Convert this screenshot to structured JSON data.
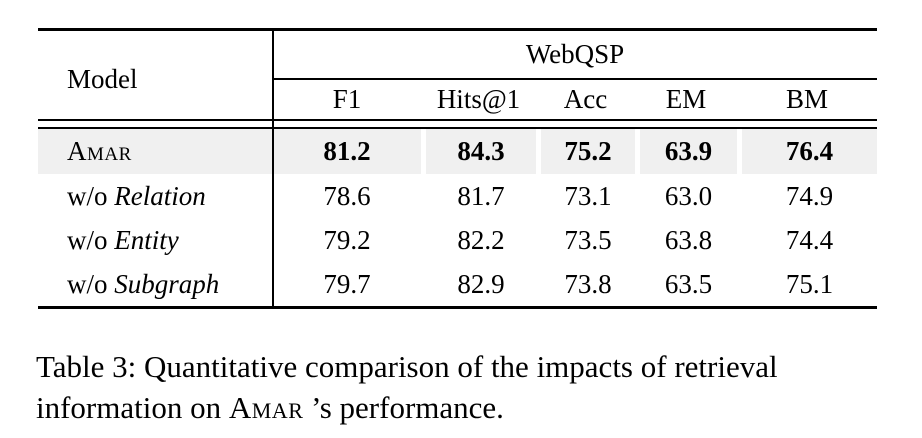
{
  "table": {
    "header": {
      "model_label": "Model",
      "group_label": "WebQSP",
      "columns": [
        "F1",
        "Hits@1",
        "Acc",
        "EM",
        "BM"
      ]
    },
    "rows": [
      {
        "label_prefix": "",
        "label_main": "Amar",
        "label_style": "small-caps",
        "highlighted": true,
        "bold_values": true,
        "values": [
          "81.2",
          "84.3",
          "75.2",
          "63.9",
          "76.4"
        ]
      },
      {
        "label_prefix": "w/o ",
        "label_main": "Relation",
        "label_style": "italic",
        "highlighted": false,
        "bold_values": false,
        "values": [
          "78.6",
          "81.7",
          "73.1",
          "63.0",
          "74.9"
        ]
      },
      {
        "label_prefix": "w/o ",
        "label_main": "Entity",
        "label_style": "italic",
        "highlighted": false,
        "bold_values": false,
        "values": [
          "79.2",
          "82.2",
          "73.5",
          "63.8",
          "74.4"
        ]
      },
      {
        "label_prefix": "w/o ",
        "label_main": "Subgraph",
        "label_style": "italic",
        "highlighted": false,
        "bold_values": false,
        "values": [
          "79.7",
          "82.9",
          "73.8",
          "63.5",
          "75.1"
        ]
      }
    ]
  },
  "caption": {
    "line1": "Table 3: Quantitative comparison of the impacts of retrieval",
    "line2_prefix": "information on ",
    "line2_model": "Amar",
    "line2_suffix": " ’s performance."
  },
  "colors": {
    "highlight_row": "#f0f0f0",
    "rule": "#000000",
    "text": "#000000",
    "background": "#ffffff"
  }
}
